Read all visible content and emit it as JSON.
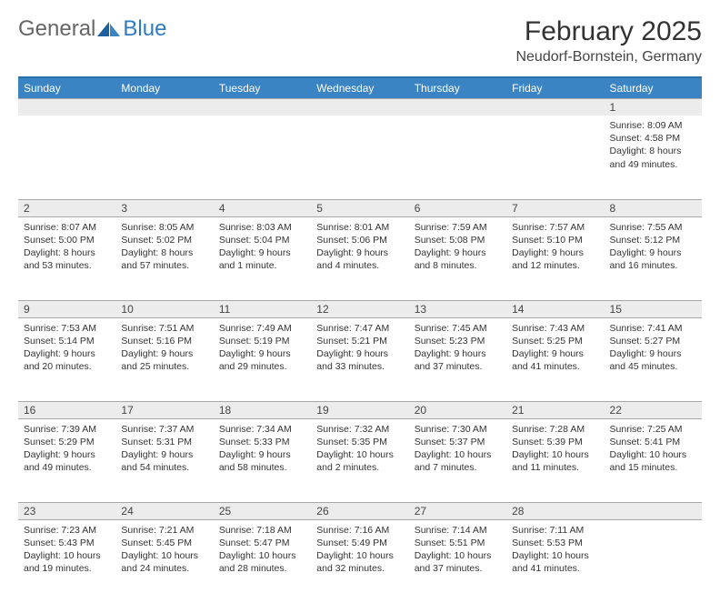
{
  "logo": {
    "text_general": "General",
    "text_blue": "Blue"
  },
  "header": {
    "month_title": "February 2025",
    "location": "Neudorf-Bornstein, Germany"
  },
  "colors": {
    "header_bg": "#3a84c4",
    "header_border_top": "#2d6fa8",
    "daynum_bg": "#ececec",
    "row_border": "#a8a8a8",
    "text": "#333333"
  },
  "weekdays": [
    "Sunday",
    "Monday",
    "Tuesday",
    "Wednesday",
    "Thursday",
    "Friday",
    "Saturday"
  ],
  "weeks": [
    [
      null,
      null,
      null,
      null,
      null,
      null,
      {
        "n": "1",
        "sr": "Sunrise: 8:09 AM",
        "ss": "Sunset: 4:58 PM",
        "d1": "Daylight: 8 hours",
        "d2": "and 49 minutes."
      }
    ],
    [
      {
        "n": "2",
        "sr": "Sunrise: 8:07 AM",
        "ss": "Sunset: 5:00 PM",
        "d1": "Daylight: 8 hours",
        "d2": "and 53 minutes."
      },
      {
        "n": "3",
        "sr": "Sunrise: 8:05 AM",
        "ss": "Sunset: 5:02 PM",
        "d1": "Daylight: 8 hours",
        "d2": "and 57 minutes."
      },
      {
        "n": "4",
        "sr": "Sunrise: 8:03 AM",
        "ss": "Sunset: 5:04 PM",
        "d1": "Daylight: 9 hours",
        "d2": "and 1 minute."
      },
      {
        "n": "5",
        "sr": "Sunrise: 8:01 AM",
        "ss": "Sunset: 5:06 PM",
        "d1": "Daylight: 9 hours",
        "d2": "and 4 minutes."
      },
      {
        "n": "6",
        "sr": "Sunrise: 7:59 AM",
        "ss": "Sunset: 5:08 PM",
        "d1": "Daylight: 9 hours",
        "d2": "and 8 minutes."
      },
      {
        "n": "7",
        "sr": "Sunrise: 7:57 AM",
        "ss": "Sunset: 5:10 PM",
        "d1": "Daylight: 9 hours",
        "d2": "and 12 minutes."
      },
      {
        "n": "8",
        "sr": "Sunrise: 7:55 AM",
        "ss": "Sunset: 5:12 PM",
        "d1": "Daylight: 9 hours",
        "d2": "and 16 minutes."
      }
    ],
    [
      {
        "n": "9",
        "sr": "Sunrise: 7:53 AM",
        "ss": "Sunset: 5:14 PM",
        "d1": "Daylight: 9 hours",
        "d2": "and 20 minutes."
      },
      {
        "n": "10",
        "sr": "Sunrise: 7:51 AM",
        "ss": "Sunset: 5:16 PM",
        "d1": "Daylight: 9 hours",
        "d2": "and 25 minutes."
      },
      {
        "n": "11",
        "sr": "Sunrise: 7:49 AM",
        "ss": "Sunset: 5:19 PM",
        "d1": "Daylight: 9 hours",
        "d2": "and 29 minutes."
      },
      {
        "n": "12",
        "sr": "Sunrise: 7:47 AM",
        "ss": "Sunset: 5:21 PM",
        "d1": "Daylight: 9 hours",
        "d2": "and 33 minutes."
      },
      {
        "n": "13",
        "sr": "Sunrise: 7:45 AM",
        "ss": "Sunset: 5:23 PM",
        "d1": "Daylight: 9 hours",
        "d2": "and 37 minutes."
      },
      {
        "n": "14",
        "sr": "Sunrise: 7:43 AM",
        "ss": "Sunset: 5:25 PM",
        "d1": "Daylight: 9 hours",
        "d2": "and 41 minutes."
      },
      {
        "n": "15",
        "sr": "Sunrise: 7:41 AM",
        "ss": "Sunset: 5:27 PM",
        "d1": "Daylight: 9 hours",
        "d2": "and 45 minutes."
      }
    ],
    [
      {
        "n": "16",
        "sr": "Sunrise: 7:39 AM",
        "ss": "Sunset: 5:29 PM",
        "d1": "Daylight: 9 hours",
        "d2": "and 49 minutes."
      },
      {
        "n": "17",
        "sr": "Sunrise: 7:37 AM",
        "ss": "Sunset: 5:31 PM",
        "d1": "Daylight: 9 hours",
        "d2": "and 54 minutes."
      },
      {
        "n": "18",
        "sr": "Sunrise: 7:34 AM",
        "ss": "Sunset: 5:33 PM",
        "d1": "Daylight: 9 hours",
        "d2": "and 58 minutes."
      },
      {
        "n": "19",
        "sr": "Sunrise: 7:32 AM",
        "ss": "Sunset: 5:35 PM",
        "d1": "Daylight: 10 hours",
        "d2": "and 2 minutes."
      },
      {
        "n": "20",
        "sr": "Sunrise: 7:30 AM",
        "ss": "Sunset: 5:37 PM",
        "d1": "Daylight: 10 hours",
        "d2": "and 7 minutes."
      },
      {
        "n": "21",
        "sr": "Sunrise: 7:28 AM",
        "ss": "Sunset: 5:39 PM",
        "d1": "Daylight: 10 hours",
        "d2": "and 11 minutes."
      },
      {
        "n": "22",
        "sr": "Sunrise: 7:25 AM",
        "ss": "Sunset: 5:41 PM",
        "d1": "Daylight: 10 hours",
        "d2": "and 15 minutes."
      }
    ],
    [
      {
        "n": "23",
        "sr": "Sunrise: 7:23 AM",
        "ss": "Sunset: 5:43 PM",
        "d1": "Daylight: 10 hours",
        "d2": "and 19 minutes."
      },
      {
        "n": "24",
        "sr": "Sunrise: 7:21 AM",
        "ss": "Sunset: 5:45 PM",
        "d1": "Daylight: 10 hours",
        "d2": "and 24 minutes."
      },
      {
        "n": "25",
        "sr": "Sunrise: 7:18 AM",
        "ss": "Sunset: 5:47 PM",
        "d1": "Daylight: 10 hours",
        "d2": "and 28 minutes."
      },
      {
        "n": "26",
        "sr": "Sunrise: 7:16 AM",
        "ss": "Sunset: 5:49 PM",
        "d1": "Daylight: 10 hours",
        "d2": "and 32 minutes."
      },
      {
        "n": "27",
        "sr": "Sunrise: 7:14 AM",
        "ss": "Sunset: 5:51 PM",
        "d1": "Daylight: 10 hours",
        "d2": "and 37 minutes."
      },
      {
        "n": "28",
        "sr": "Sunrise: 7:11 AM",
        "ss": "Sunset: 5:53 PM",
        "d1": "Daylight: 10 hours",
        "d2": "and 41 minutes."
      },
      null
    ]
  ]
}
